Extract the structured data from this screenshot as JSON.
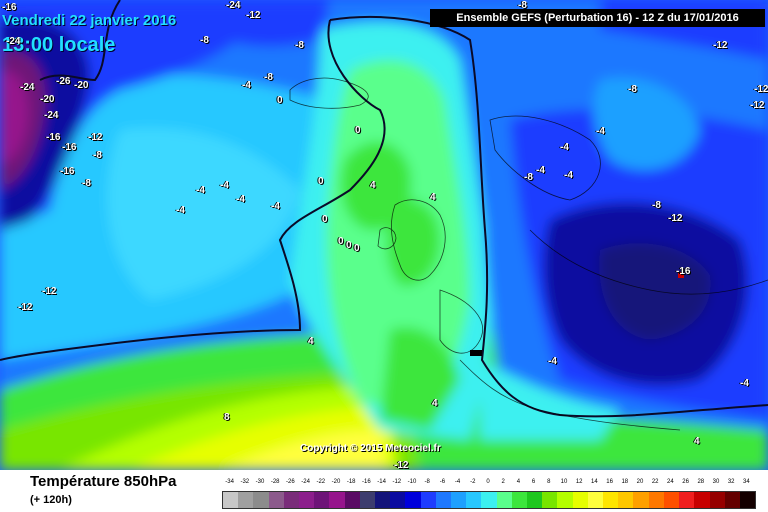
{
  "header": {
    "date": "Vendredi 22 janvier 2016",
    "time": "13:00 locale",
    "run": "Ensemble GEFS  (Perturbation 16)  -  12 Z du 17/01/2016"
  },
  "copyright": "Copyright © 2015 Meteociel.fr",
  "legend": {
    "title": "Température 850hPa",
    "lead": "(+ 120h)",
    "scale": [
      {
        "v": "-34",
        "c": "#c8c8c8"
      },
      {
        "v": "-32",
        "c": "#a0a0a0"
      },
      {
        "v": "-30",
        "c": "#8c8c8c"
      },
      {
        "v": "-28",
        "c": "#8c5a8c"
      },
      {
        "v": "-26",
        "c": "#7a2c7a"
      },
      {
        "v": "-24",
        "c": "#8c1e8c"
      },
      {
        "v": "-22",
        "c": "#6e1478"
      },
      {
        "v": "-20",
        "c": "#96148c"
      },
      {
        "v": "-18",
        "c": "#5a0a64"
      },
      {
        "v": "-16",
        "c": "#3c3c6e"
      },
      {
        "v": "-14",
        "c": "#14147a"
      },
      {
        "v": "-12",
        "c": "#0a0aa0"
      },
      {
        "v": "-10",
        "c": "#0000dc"
      },
      {
        "v": "-8",
        "c": "#1e3cff"
      },
      {
        "v": "-6",
        "c": "#1e78ff"
      },
      {
        "v": "-4",
        "c": "#1ea0ff"
      },
      {
        "v": "-2",
        "c": "#28c8ff"
      },
      {
        "v": "0",
        "c": "#3cf0f0"
      },
      {
        "v": "2",
        "c": "#5aff8c"
      },
      {
        "v": "4",
        "c": "#3ce63c"
      },
      {
        "v": "6",
        "c": "#1ec81e"
      },
      {
        "v": "8",
        "c": "#78e600"
      },
      {
        "v": "10",
        "c": "#b4ff00"
      },
      {
        "v": "12",
        "c": "#e6ff00"
      },
      {
        "v": "14",
        "c": "#ffff3c"
      },
      {
        "v": "16",
        "c": "#ffe600"
      },
      {
        "v": "18",
        "c": "#ffc800"
      },
      {
        "v": "20",
        "c": "#ffa000"
      },
      {
        "v": "22",
        "c": "#ff7800"
      },
      {
        "v": "24",
        "c": "#ff5000"
      },
      {
        "v": "26",
        "c": "#f01e1e"
      },
      {
        "v": "28",
        "c": "#c80000"
      },
      {
        "v": "30",
        "c": "#960000"
      },
      {
        "v": "32",
        "c": "#640000"
      },
      {
        "v": "34",
        "c": "#140000"
      }
    ]
  },
  "isotherm_labels": [
    {
      "t": "-16"
    },
    {
      "t": "-24"
    },
    {
      "t": "-8"
    },
    {
      "t": "-12"
    },
    {
      "t": "-8"
    },
    {
      "t": "-4"
    },
    {
      "t": "-8"
    },
    {
      "t": "0"
    },
    {
      "t": "-24"
    },
    {
      "t": "-26"
    },
    {
      "t": "-20"
    },
    {
      "t": "-24"
    },
    {
      "t": "-20"
    },
    {
      "t": "-24"
    },
    {
      "t": "-12"
    },
    {
      "t": "-16"
    },
    {
      "t": "-16"
    },
    {
      "t": "-8"
    },
    {
      "t": "-16"
    },
    {
      "t": "-8"
    },
    {
      "t": "0"
    },
    {
      "t": "0"
    },
    {
      "t": "-4"
    },
    {
      "t": "-4"
    },
    {
      "t": "-4"
    },
    {
      "t": "-4"
    },
    {
      "t": "-4"
    },
    {
      "t": "0"
    },
    {
      "t": "4"
    },
    {
      "t": "0"
    },
    {
      "t": "0"
    },
    {
      "t": "0"
    },
    {
      "t": "4"
    },
    {
      "t": "4"
    },
    {
      "t": "-12"
    },
    {
      "t": "-12"
    },
    {
      "t": "4"
    },
    {
      "t": "8"
    },
    {
      "t": "4"
    },
    {
      "t": "-12"
    },
    {
      "t": "-8"
    },
    {
      "t": "-12"
    },
    {
      "t": "-8"
    },
    {
      "t": "-12"
    },
    {
      "t": "-4"
    },
    {
      "t": "-4"
    },
    {
      "t": "-8"
    },
    {
      "t": "-4"
    },
    {
      "t": "-8"
    },
    {
      "t": "-12"
    },
    {
      "t": "-16"
    },
    {
      "t": "-4"
    },
    {
      "t": "-4"
    },
    {
      "t": "-4"
    },
    {
      "t": "-12"
    }
  ]
}
